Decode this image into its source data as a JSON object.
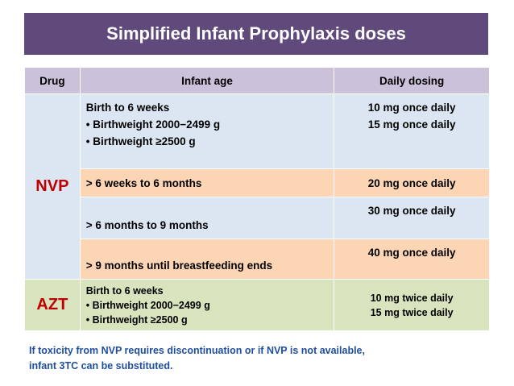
{
  "title": "Simplified Infant Prophylaxis doses",
  "table": {
    "headers": [
      "Drug",
      "Infant age",
      "Daily dosing"
    ],
    "nvp_label": "NVP",
    "azt_label": "AZT",
    "rows": [
      {
        "age": [
          "Birth to 6 weeks",
          "• Birthweight 2000−2499 g",
          "• Birthweight ≥2500 g"
        ],
        "dose": [
          "10 mg once daily",
          "15 mg once daily"
        ]
      },
      {
        "age": [
          "> 6 weeks to 6 months"
        ],
        "dose": [
          "20 mg once daily"
        ]
      },
      {
        "age": [
          "> 6 months to 9 months"
        ],
        "dose": [
          "30 mg once daily"
        ]
      },
      {
        "age": [
          "> 9 months until breastfeeding ends"
        ],
        "dose": [
          "40 mg once daily"
        ]
      },
      {
        "age": [
          "Birth  to 6 weeks",
          "• Birthweight 2000−2499 g",
          "• Birthweight ≥2500 g"
        ],
        "dose": [
          "10 mg twice daily",
          "15 mg twice daily"
        ]
      }
    ]
  },
  "note": [
    "If toxicity from  NVP requires discontinuation  or if  NVP is not available,",
    "infant 3TC can be substituted."
  ],
  "colors": {
    "title_bg": "#604a7b",
    "header_bg": "#ccc1da",
    "row_blue": "#dce6f2",
    "row_peach": "#fcd5b5",
    "row_green": "#d7e4bd",
    "drug_red": "#c00000",
    "note_blue": "#1f4e9e"
  }
}
